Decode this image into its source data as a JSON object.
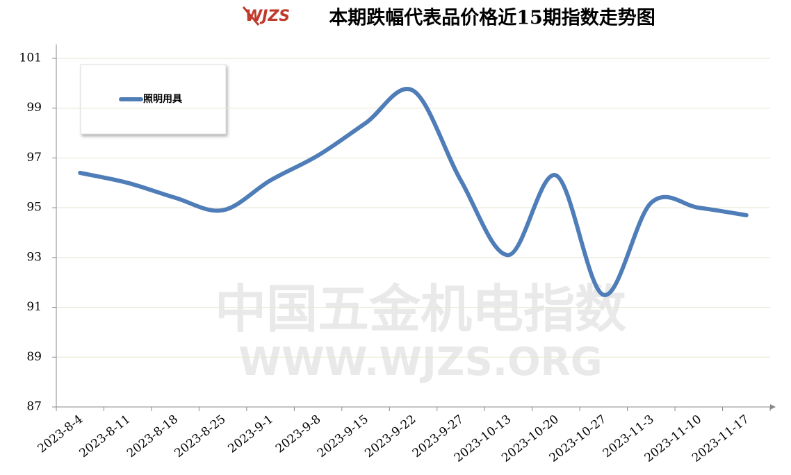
{
  "chart_data": {
    "type": "line",
    "title": "本期跌幅代表品价格近15期指数走势图",
    "logo": "WJZS",
    "watermark": [
      "中国五金机电指数",
      "WWW.WJZS.ORG"
    ],
    "categories": [
      "2023-8-4",
      "2023-8-11",
      "2023-8-18",
      "2023-8-25",
      "2023-9-1",
      "2023-9-8",
      "2023-9-15",
      "2023-9-22",
      "2023-9-27",
      "2023-10-13",
      "2023-10-20",
      "2023-10-27",
      "2023-11-3",
      "2023-11-10",
      "2023-11-17"
    ],
    "series": [
      {
        "name": "照明用具",
        "color": "#4f7db8",
        "values": [
          96.4,
          96.0,
          95.4,
          94.9,
          96.1,
          97.1,
          98.4,
          99.7,
          96.1,
          93.1,
          96.3,
          91.5,
          95.2,
          95.0,
          94.7
        ]
      }
    ],
    "ylim": [
      87,
      101
    ],
    "yticks": [
      87,
      89,
      91,
      93,
      95,
      97,
      99,
      101
    ],
    "grid": true,
    "smooth": true,
    "legend": "top-left"
  }
}
